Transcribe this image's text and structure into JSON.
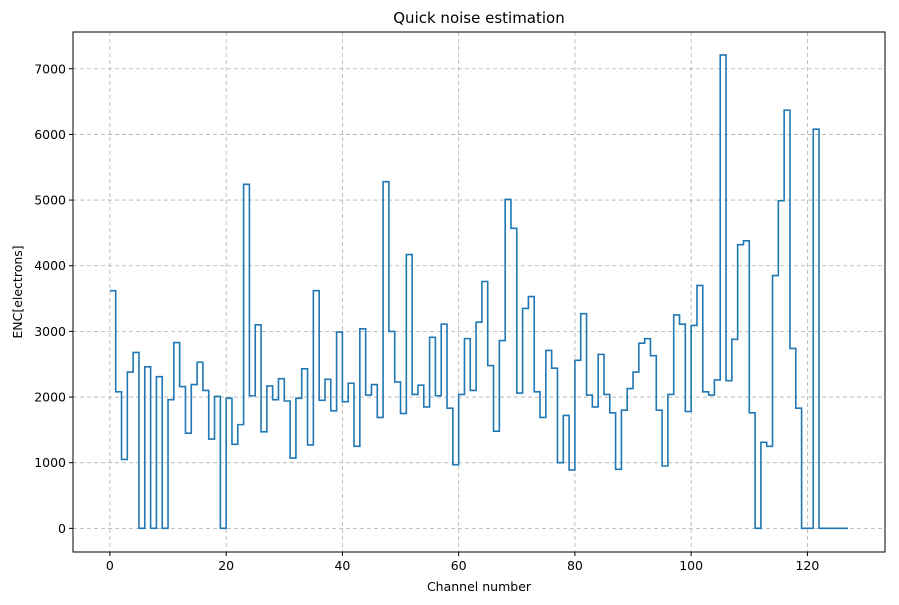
{
  "chart_data": {
    "type": "line",
    "drawstyle": "steps-post",
    "title": "Quick noise estimation",
    "xlabel": "Channel number",
    "ylabel": "ENC[electrons]",
    "xlim": [
      -6.35,
      133.35
    ],
    "ylim": [
      -360,
      7560
    ],
    "xticks": [
      0,
      20,
      40,
      60,
      80,
      100,
      120
    ],
    "yticks": [
      0,
      1000,
      2000,
      3000,
      4000,
      5000,
      6000,
      7000
    ],
    "grid": true,
    "color": "#1f77b4",
    "x_start": 0,
    "x_end": 127,
    "series": [
      {
        "x": [
          0,
          1,
          2,
          3,
          4,
          5,
          6,
          7,
          8,
          9,
          10,
          11,
          12,
          13,
          14,
          15,
          16,
          17,
          18,
          19,
          20,
          21,
          22,
          23,
          24,
          25,
          26,
          27,
          28,
          29,
          30,
          31,
          32,
          33,
          34,
          35,
          36,
          37,
          38,
          39,
          40,
          41,
          42,
          43,
          44,
          45,
          46,
          47,
          48,
          49,
          50,
          51,
          52,
          53,
          54,
          55,
          56,
          57,
          58,
          59,
          60,
          61,
          62,
          63,
          64,
          65,
          66,
          67,
          68,
          69,
          70,
          71,
          72,
          73,
          74,
          75,
          76,
          77,
          78,
          79,
          80,
          81,
          82,
          83,
          84,
          85,
          86,
          87,
          88,
          89,
          90,
          91,
          92,
          93,
          94,
          95,
          96,
          97,
          98,
          99,
          100,
          101,
          102,
          103,
          104,
          105,
          106,
          107,
          108,
          109,
          110,
          111,
          112,
          113,
          114,
          115,
          116,
          117,
          118,
          119,
          120,
          121,
          122,
          123,
          124,
          125,
          126
        ],
        "values": [
          3620,
          2080,
          1050,
          2380,
          2680,
          0,
          2460,
          0,
          2310,
          0,
          1960,
          2830,
          2160,
          1450,
          2190,
          2530,
          2100,
          1360,
          2010,
          0,
          1980,
          1280,
          1580,
          5240,
          2020,
          3100,
          1470,
          2170,
          1960,
          2280,
          1940,
          1070,
          1980,
          2430,
          1270,
          3620,
          1950,
          2270,
          1790,
          2990,
          1930,
          2210,
          1250,
          3040,
          2030,
          2190,
          1690,
          5280,
          3000,
          2230,
          1750,
          4170,
          2040,
          2180,
          1850,
          2910,
          2020,
          3110,
          1830,
          970,
          2040,
          2890,
          2100,
          3140,
          3760,
          2480,
          1480,
          2860,
          5010,
          4570,
          2060,
          3350,
          3530,
          2080,
          1690,
          2710,
          2440,
          1000,
          1720,
          890,
          2560,
          3270,
          2030,
          1850,
          2650,
          2040,
          1760,
          900,
          1800,
          2130,
          2380,
          2820,
          2890,
          2630,
          1800,
          950,
          2040,
          3250,
          3110,
          1780,
          3090,
          3700,
          2080,
          2030,
          2260,
          7210,
          2250,
          2880,
          4320,
          4380,
          1760,
          0,
          1310,
          1250,
          3850,
          4990,
          6370,
          2740,
          1830,
          0,
          0,
          6080,
          0,
          0,
          0,
          0,
          0
        ]
      }
    ]
  }
}
